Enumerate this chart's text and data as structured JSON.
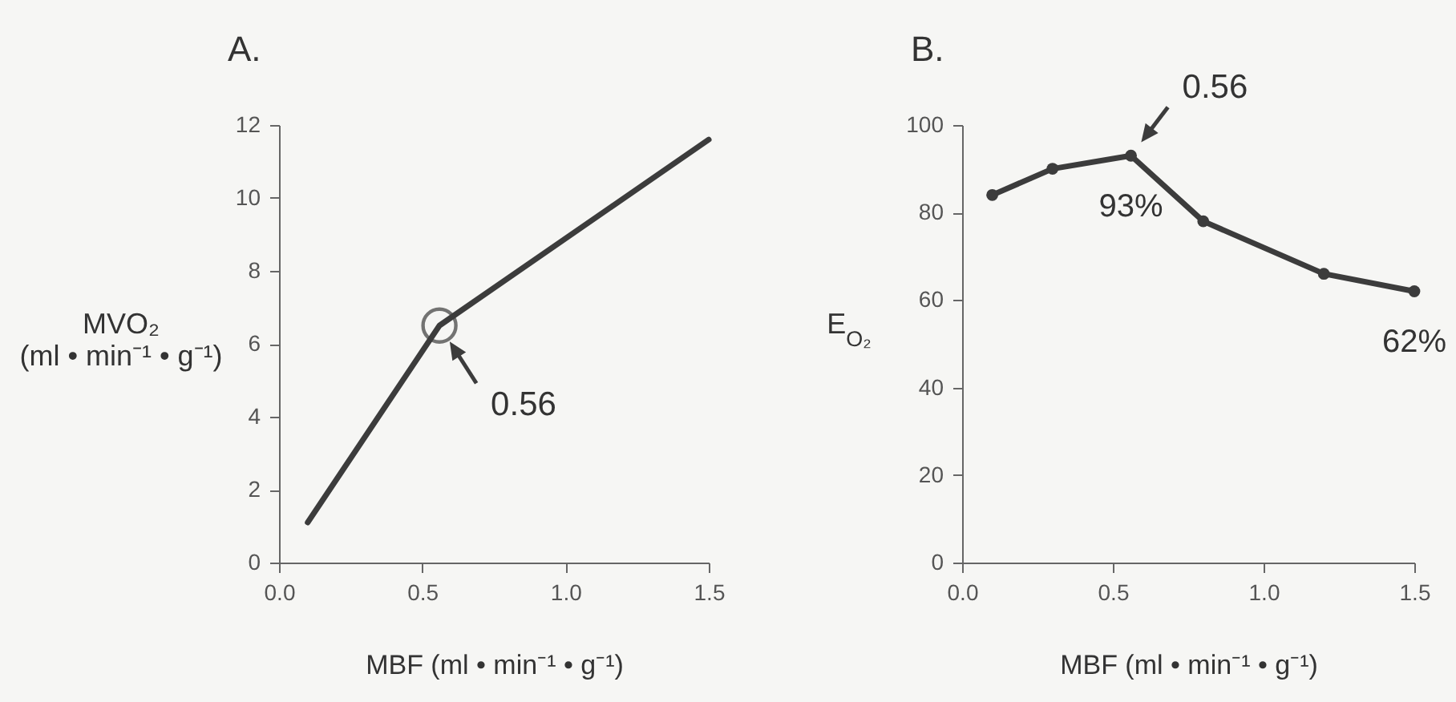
{
  "chart_data": [
    {
      "type": "line",
      "title": "A.",
      "xlabel": "MBF (ml • min⁻¹ • g⁻¹)",
      "ylabel": "MVO₂ (ml • min⁻¹ • g⁻¹)",
      "xlim": [
        0,
        1.5
      ],
      "xticks": [
        {
          "value": 0,
          "label": "0.0"
        },
        {
          "value": 0.5,
          "label": "0.5"
        },
        {
          "value": 1,
          "label": "1.0"
        },
        {
          "value": 1.5,
          "label": "1.5"
        }
      ],
      "ylim": [
        0,
        12
      ],
      "yticks": [
        0,
        2,
        4,
        6,
        8,
        10,
        12
      ],
      "series": [
        {
          "x": [
            0.1,
            0.56,
            1.5
          ],
          "values": [
            1.1,
            6.5,
            11.6
          ],
          "color": "#3c3c3c",
          "marker": "none"
        },
        {
          "type": "scatter",
          "x": [
            0.56
          ],
          "values": [
            6.5
          ],
          "color": "#3c3c3c",
          "marker": "circle"
        }
      ],
      "annotations": [
        {
          "text": "0.56",
          "x": 0.56,
          "y": 6.5
        }
      ]
    },
    {
      "type": "line",
      "title": "B.",
      "xlabel": "MBF (ml • min⁻¹ • g⁻¹)",
      "ylabel": "E$_{O₂}$",
      "xlim": [
        0,
        1.5
      ],
      "xticks": [
        {
          "value": 0,
          "label": "0.0"
        },
        {
          "value": 0.5,
          "label": "0.5"
        },
        {
          "value": 1,
          "label": "1.0"
        },
        {
          "value": 1.5,
          "label": "1.5"
        }
      ],
      "ylim": [
        0,
        100
      ],
      "yticks": [
        0,
        20,
        40,
        60,
        80,
        100
      ],
      "series": [
        {
          "x": [
            0.1,
            0.3,
            0.56,
            0.8,
            1.2,
            1.5
          ],
          "values": [
            84,
            90,
            93,
            78,
            66,
            62
          ],
          "color": "#3c3c3c",
          "marker": "circle",
          "value_labels": [
            null,
            null,
            "93%",
            null,
            null,
            "62%"
          ]
        }
      ],
      "annotations": [
        {
          "text": "0.56",
          "x": 0.56,
          "y": 93
        }
      ]
    }
  ]
}
